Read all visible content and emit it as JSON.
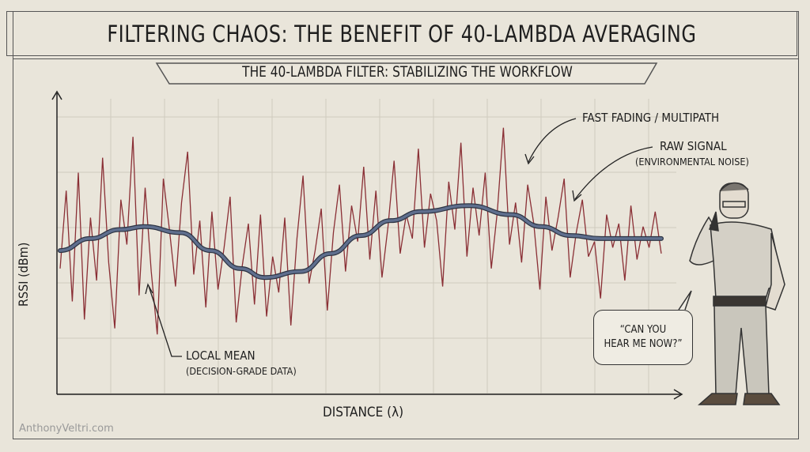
{
  "header": {
    "title": "FILTERING CHAOS: THE BENEFIT OF 40-LAMBDA AVERAGING",
    "subtitle": "THE 40-LAMBDA FILTER: STABILIZING THE WORKFLOW"
  },
  "annotations": {
    "fast_fading": "FAST FADING / MULTIPATH",
    "raw_signal": "RAW SIGNAL",
    "raw_signal_sub": "(ENVIRONMENTAL NOISE)",
    "local_mean": "LOCAL MEAN",
    "local_mean_sub": "(DECISION-GRADE DATA)"
  },
  "speech": {
    "line1": "“CAN YOU",
    "line2": "HEAR ME NOW?”"
  },
  "watermark": "AnthonyVeltri.com",
  "chart_data": {
    "type": "line",
    "title": "THE 40-LAMBDA FILTER: STABILIZING THE WORKFLOW",
    "xlabel": "DISTANCE (λ)",
    "ylabel": "RSSI (dBm)",
    "xlim": [
      0,
      100
    ],
    "ylim": [
      0,
      10
    ],
    "grid": true,
    "colors": {
      "raw": "#8a2f35",
      "mean": "#5f6f8e"
    },
    "series": [
      {
        "name": "RAW SIGNAL",
        "x_step": 1,
        "values": [
          4.2,
          6.8,
          3.1,
          7.4,
          2.5,
          5.9,
          3.8,
          7.9,
          4.4,
          2.2,
          6.5,
          5.0,
          8.6,
          3.3,
          6.9,
          4.1,
          2.0,
          7.2,
          5.5,
          3.6,
          6.4,
          8.1,
          4.0,
          5.8,
          2.9,
          6.1,
          3.5,
          4.9,
          6.6,
          2.4,
          4.3,
          5.7,
          3.0,
          6.0,
          2.6,
          4.6,
          3.4,
          5.9,
          2.3,
          5.2,
          7.3,
          3.7,
          4.8,
          6.2,
          2.8,
          5.4,
          7.0,
          4.1,
          6.3,
          5.1,
          7.6,
          4.5,
          6.8,
          3.9,
          5.6,
          7.8,
          4.7,
          6.0,
          5.2,
          8.2,
          4.9,
          6.7,
          5.8,
          3.6,
          7.1,
          5.5,
          8.4,
          4.6,
          6.9,
          5.3,
          7.4,
          4.2,
          6.1,
          8.9,
          5.0,
          6.4,
          4.4,
          7.0,
          5.7,
          3.5,
          6.6,
          4.8,
          5.9,
          7.2,
          3.9,
          5.4,
          6.5,
          4.6,
          5.1,
          3.2,
          6.0,
          4.9,
          5.7,
          3.8,
          6.3,
          4.5,
          5.6,
          4.9,
          6.1,
          4.7
        ]
      },
      {
        "name": "LOCAL MEAN",
        "points": [
          [
            0,
            4.8
          ],
          [
            5,
            5.2
          ],
          [
            10,
            5.5
          ],
          [
            14,
            5.6
          ],
          [
            20,
            5.4
          ],
          [
            25,
            4.8
          ],
          [
            30,
            4.2
          ],
          [
            34,
            3.9
          ],
          [
            40,
            4.1
          ],
          [
            45,
            4.7
          ],
          [
            50,
            5.3
          ],
          [
            55,
            5.8
          ],
          [
            60,
            6.1
          ],
          [
            68,
            6.3
          ],
          [
            75,
            6.0
          ],
          [
            80,
            5.6
          ],
          [
            85,
            5.3
          ],
          [
            90,
            5.2
          ],
          [
            95,
            5.2
          ],
          [
            100,
            5.2
          ]
        ]
      }
    ]
  }
}
